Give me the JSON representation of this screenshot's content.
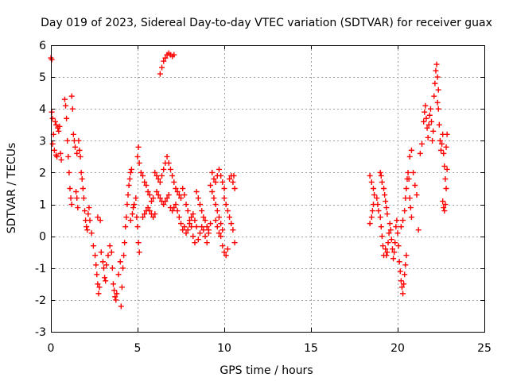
{
  "chart_data": {
    "type": "scatter",
    "title": "Day 019 of 2023, Sidereal Day-to-day VTEC variation (SDTVAR) for receiver guax",
    "xlabel": "GPS time / hours",
    "ylabel": "SDTVAR / TECUs",
    "xlim": [
      0,
      25
    ],
    "ylim": [
      -3,
      6
    ],
    "x_ticks": [
      0,
      5,
      10,
      15,
      20,
      25
    ],
    "y_ticks": [
      -3,
      -2,
      -1,
      0,
      1,
      2,
      3,
      4,
      5,
      6
    ],
    "grid": true,
    "marker": "+",
    "color": "#ff0000",
    "series": [
      {
        "name": "SDTVAR",
        "points": [
          [
            0.0,
            5.6
          ],
          [
            0.05,
            5.55
          ],
          [
            0.05,
            3.9
          ],
          [
            0.1,
            3.7
          ],
          [
            0.15,
            3.2
          ],
          [
            0.1,
            2.9
          ],
          [
            0.2,
            2.7
          ],
          [
            0.3,
            2.55
          ],
          [
            0.35,
            2.5
          ],
          [
            0.25,
            3.6
          ],
          [
            0.3,
            3.5
          ],
          [
            0.4,
            3.4
          ],
          [
            0.45,
            3.3
          ],
          [
            0.5,
            3.45
          ],
          [
            0.55,
            2.6
          ],
          [
            0.6,
            2.4
          ],
          [
            0.8,
            4.3
          ],
          [
            0.85,
            4.1
          ],
          [
            0.9,
            3.7
          ],
          [
            0.95,
            3.0
          ],
          [
            1.0,
            2.5
          ],
          [
            1.05,
            2.0
          ],
          [
            1.1,
            1.5
          ],
          [
            1.15,
            1.2
          ],
          [
            1.2,
            1.0
          ],
          [
            1.2,
            4.4
          ],
          [
            1.25,
            4.0
          ],
          [
            1.3,
            3.2
          ],
          [
            1.35,
            3.0
          ],
          [
            1.4,
            2.8
          ],
          [
            1.5,
            2.6
          ],
          [
            1.45,
            1.4
          ],
          [
            1.5,
            1.2
          ],
          [
            1.55,
            0.9
          ],
          [
            1.6,
            3.0
          ],
          [
            1.65,
            2.7
          ],
          [
            1.7,
            2.5
          ],
          [
            1.75,
            2.0
          ],
          [
            1.8,
            1.8
          ],
          [
            1.85,
            1.5
          ],
          [
            1.9,
            1.2
          ],
          [
            1.95,
            0.8
          ],
          [
            2.0,
            0.5
          ],
          [
            2.05,
            0.3
          ],
          [
            2.1,
            0.2
          ],
          [
            2.15,
            0.7
          ],
          [
            2.2,
            0.9
          ],
          [
            2.25,
            0.5
          ],
          [
            2.35,
            0.1
          ],
          [
            2.45,
            -0.3
          ],
          [
            2.55,
            -0.6
          ],
          [
            2.6,
            -0.9
          ],
          [
            2.65,
            -1.2
          ],
          [
            2.7,
            -1.5
          ],
          [
            2.75,
            -1.8
          ],
          [
            2.8,
            -1.6
          ],
          [
            2.7,
            0.6
          ],
          [
            2.85,
            0.5
          ],
          [
            2.9,
            -0.5
          ],
          [
            3.0,
            -0.8
          ],
          [
            3.05,
            -1.0
          ],
          [
            3.1,
            -1.3
          ],
          [
            3.15,
            -1.4
          ],
          [
            3.2,
            -0.9
          ],
          [
            3.3,
            -0.6
          ],
          [
            3.4,
            -0.3
          ],
          [
            3.5,
            -0.5
          ],
          [
            3.55,
            -1.0
          ],
          [
            3.6,
            -1.5
          ],
          [
            3.65,
            -1.7
          ],
          [
            3.7,
            -1.9
          ],
          [
            3.75,
            -2.0
          ],
          [
            3.8,
            -1.8
          ],
          [
            3.9,
            -1.2
          ],
          [
            4.0,
            -0.8
          ],
          [
            4.05,
            -2.2
          ],
          [
            4.1,
            -1.6
          ],
          [
            4.15,
            -1.0
          ],
          [
            4.2,
            -0.6
          ],
          [
            4.25,
            -0.2
          ],
          [
            4.3,
            0.3
          ],
          [
            4.35,
            0.6
          ],
          [
            4.4,
            1.0
          ],
          [
            4.45,
            1.3
          ],
          [
            4.5,
            1.6
          ],
          [
            4.55,
            1.8
          ],
          [
            4.6,
            2.0
          ],
          [
            4.65,
            2.1
          ],
          [
            4.6,
            0.5
          ],
          [
            4.7,
            0.7
          ],
          [
            4.75,
            0.9
          ],
          [
            4.8,
            1.0
          ],
          [
            4.9,
            1.2
          ],
          [
            4.95,
            0.6
          ],
          [
            5.0,
            0.3
          ],
          [
            5.05,
            -0.2
          ],
          [
            5.1,
            -0.5
          ],
          [
            5.0,
            2.5
          ],
          [
            5.05,
            2.8
          ],
          [
            5.1,
            2.3
          ],
          [
            5.2,
            2.0
          ],
          [
            5.3,
            1.9
          ],
          [
            5.4,
            1.7
          ],
          [
            5.5,
            1.6
          ],
          [
            5.6,
            1.4
          ],
          [
            5.7,
            1.3
          ],
          [
            5.8,
            1.1
          ],
          [
            5.9,
            1.2
          ],
          [
            5.3,
            0.6
          ],
          [
            5.4,
            0.7
          ],
          [
            5.5,
            0.8
          ],
          [
            5.6,
            0.9
          ],
          [
            5.7,
            0.8
          ],
          [
            5.8,
            0.7
          ],
          [
            5.9,
            0.6
          ],
          [
            6.0,
            0.7
          ],
          [
            6.0,
            2.0
          ],
          [
            6.1,
            1.9
          ],
          [
            6.2,
            1.8
          ],
          [
            6.3,
            1.7
          ],
          [
            6.4,
            1.9
          ],
          [
            6.5,
            2.1
          ],
          [
            6.6,
            2.3
          ],
          [
            6.7,
            2.5
          ],
          [
            6.1,
            1.4
          ],
          [
            6.2,
            1.3
          ],
          [
            6.3,
            1.2
          ],
          [
            6.4,
            1.1
          ],
          [
            6.5,
            1.0
          ],
          [
            6.6,
            1.1
          ],
          [
            6.7,
            1.2
          ],
          [
            6.8,
            1.3
          ],
          [
            6.8,
            2.3
          ],
          [
            6.9,
            2.1
          ],
          [
            7.0,
            1.9
          ],
          [
            7.1,
            1.7
          ],
          [
            7.2,
            1.5
          ],
          [
            7.3,
            1.4
          ],
          [
            7.4,
            1.3
          ],
          [
            7.5,
            1.2
          ],
          [
            6.9,
            0.9
          ],
          [
            7.0,
            0.8
          ],
          [
            7.1,
            0.9
          ],
          [
            7.2,
            1.0
          ],
          [
            7.3,
            0.8
          ],
          [
            7.4,
            0.6
          ],
          [
            7.5,
            0.4
          ],
          [
            7.6,
            0.2
          ],
          [
            6.3,
            5.1
          ],
          [
            6.4,
            5.3
          ],
          [
            6.5,
            5.5
          ],
          [
            6.6,
            5.6
          ],
          [
            6.7,
            5.7
          ],
          [
            6.8,
            5.75
          ],
          [
            6.9,
            5.7
          ],
          [
            7.0,
            5.65
          ],
          [
            7.1,
            5.7
          ],
          [
            7.6,
            1.5
          ],
          [
            7.7,
            1.3
          ],
          [
            7.8,
            1.0
          ],
          [
            7.9,
            0.8
          ],
          [
            8.0,
            0.5
          ],
          [
            8.1,
            0.3
          ],
          [
            8.2,
            0.0
          ],
          [
            8.3,
            -0.2
          ],
          [
            7.7,
            0.3
          ],
          [
            7.8,
            0.1
          ],
          [
            7.9,
            0.2
          ],
          [
            8.0,
            0.4
          ],
          [
            8.1,
            0.6
          ],
          [
            8.2,
            0.7
          ],
          [
            8.3,
            0.5
          ],
          [
            8.4,
            0.3
          ],
          [
            8.4,
            1.4
          ],
          [
            8.5,
            1.2
          ],
          [
            8.6,
            1.0
          ],
          [
            8.7,
            0.8
          ],
          [
            8.8,
            0.6
          ],
          [
            8.9,
            0.5
          ],
          [
            9.0,
            0.3
          ],
          [
            9.1,
            0.2
          ],
          [
            8.5,
            -0.1
          ],
          [
            8.6,
            0.1
          ],
          [
            8.7,
            0.3
          ],
          [
            8.8,
            0.2
          ],
          [
            8.9,
            0.0
          ],
          [
            9.0,
            -0.2
          ],
          [
            9.1,
            0.1
          ],
          [
            9.2,
            0.4
          ],
          [
            9.2,
            1.6
          ],
          [
            9.3,
            1.4
          ],
          [
            9.4,
            1.2
          ],
          [
            9.5,
            1.0
          ],
          [
            9.6,
            0.8
          ],
          [
            9.7,
            0.6
          ],
          [
            9.8,
            0.4
          ],
          [
            9.9,
            0.2
          ],
          [
            9.3,
            2.0
          ],
          [
            9.4,
            1.8
          ],
          [
            9.5,
            1.7
          ],
          [
            9.6,
            1.9
          ],
          [
            9.7,
            2.1
          ],
          [
            9.8,
            1.9
          ],
          [
            9.9,
            1.7
          ],
          [
            10.0,
            1.5
          ],
          [
            9.5,
            0.5
          ],
          [
            9.6,
            0.3
          ],
          [
            9.7,
            0.1
          ],
          [
            9.8,
            0.0
          ],
          [
            9.9,
            -0.3
          ],
          [
            10.0,
            -0.5
          ],
          [
            10.1,
            -0.6
          ],
          [
            10.2,
            -0.4
          ],
          [
            10.0,
            1.2
          ],
          [
            10.1,
            1.0
          ],
          [
            10.2,
            0.8
          ],
          [
            10.3,
            0.6
          ],
          [
            10.4,
            0.4
          ],
          [
            10.5,
            0.2
          ],
          [
            10.3,
            1.8
          ],
          [
            10.4,
            1.9
          ],
          [
            10.5,
            1.7
          ],
          [
            10.55,
            1.9
          ],
          [
            10.6,
            -0.2
          ],
          [
            10.6,
            1.5
          ],
          [
            18.4,
            0.4
          ],
          [
            18.5,
            0.6
          ],
          [
            18.55,
            0.8
          ],
          [
            18.6,
            1.0
          ],
          [
            18.4,
            1.9
          ],
          [
            18.5,
            1.7
          ],
          [
            18.6,
            1.5
          ],
          [
            18.65,
            1.3
          ],
          [
            18.8,
            1.2
          ],
          [
            18.85,
            1.0
          ],
          [
            18.9,
            0.8
          ],
          [
            19.0,
            0.6
          ],
          [
            19.05,
            0.3
          ],
          [
            19.1,
            0.0
          ],
          [
            19.15,
            -0.3
          ],
          [
            19.2,
            -0.6
          ],
          [
            19.0,
            2.0
          ],
          [
            19.05,
            1.9
          ],
          [
            19.1,
            1.7
          ],
          [
            19.2,
            1.5
          ],
          [
            19.25,
            1.3
          ],
          [
            19.3,
            1.1
          ],
          [
            19.35,
            0.9
          ],
          [
            19.4,
            0.7
          ],
          [
            19.3,
            -0.4
          ],
          [
            19.35,
            -0.6
          ],
          [
            19.4,
            -0.5
          ],
          [
            19.45,
            -0.2
          ],
          [
            19.5,
            0.1
          ],
          [
            19.55,
            0.4
          ],
          [
            19.6,
            0.2
          ],
          [
            19.65,
            -0.1
          ],
          [
            19.7,
            -0.4
          ],
          [
            19.75,
            -0.7
          ],
          [
            19.8,
            -0.5
          ],
          [
            19.85,
            -0.2
          ],
          [
            19.9,
            0.3
          ],
          [
            19.95,
            0.5
          ],
          [
            20.0,
            0.1
          ],
          [
            20.05,
            -0.3
          ],
          [
            20.1,
            -0.8
          ],
          [
            20.15,
            -1.1
          ],
          [
            20.2,
            -1.4
          ],
          [
            20.25,
            -1.6
          ],
          [
            20.3,
            -1.8
          ],
          [
            20.35,
            -1.5
          ],
          [
            20.4,
            -1.2
          ],
          [
            20.45,
            -0.9
          ],
          [
            20.5,
            -0.6
          ],
          [
            20.2,
            0.3
          ],
          [
            20.3,
            0.5
          ],
          [
            20.4,
            0.8
          ],
          [
            20.45,
            1.2
          ],
          [
            20.5,
            1.5
          ],
          [
            20.55,
            1.8
          ],
          [
            20.6,
            2.0
          ],
          [
            20.65,
            1.8
          ],
          [
            20.7,
            1.2
          ],
          [
            20.75,
            0.9
          ],
          [
            20.8,
            0.6
          ],
          [
            20.7,
            2.5
          ],
          [
            20.8,
            2.7
          ],
          [
            20.9,
            2.0
          ],
          [
            21.0,
            1.6
          ],
          [
            21.1,
            1.3
          ],
          [
            21.2,
            0.2
          ],
          [
            21.3,
            2.6
          ],
          [
            21.4,
            2.9
          ],
          [
            21.5,
            3.6
          ],
          [
            21.55,
            3.9
          ],
          [
            21.6,
            4.1
          ],
          [
            21.65,
            3.7
          ],
          [
            21.7,
            3.4
          ],
          [
            21.75,
            3.1
          ],
          [
            21.8,
            3.5
          ],
          [
            21.85,
            3.8
          ],
          [
            21.9,
            4.0
          ],
          [
            21.95,
            3.6
          ],
          [
            22.0,
            3.0
          ],
          [
            22.05,
            3.3
          ],
          [
            22.1,
            4.4
          ],
          [
            22.15,
            4.8
          ],
          [
            22.2,
            5.2
          ],
          [
            22.25,
            5.4
          ],
          [
            22.3,
            5.0
          ],
          [
            22.35,
            4.6
          ],
          [
            22.3,
            4.2
          ],
          [
            22.35,
            4.0
          ],
          [
            22.4,
            3.5
          ],
          [
            22.45,
            3.0
          ],
          [
            22.5,
            2.7
          ],
          [
            22.55,
            2.9
          ],
          [
            22.6,
            3.2
          ],
          [
            22.65,
            2.6
          ],
          [
            22.7,
            2.2
          ],
          [
            22.75,
            1.8
          ],
          [
            22.6,
            1.1
          ],
          [
            22.65,
            0.9
          ],
          [
            22.7,
            0.8
          ],
          [
            22.75,
            1.0
          ],
          [
            22.8,
            1.5
          ],
          [
            22.85,
            2.1
          ],
          [
            22.85,
            3.2
          ],
          [
            22.8,
            2.8
          ]
        ]
      }
    ]
  }
}
